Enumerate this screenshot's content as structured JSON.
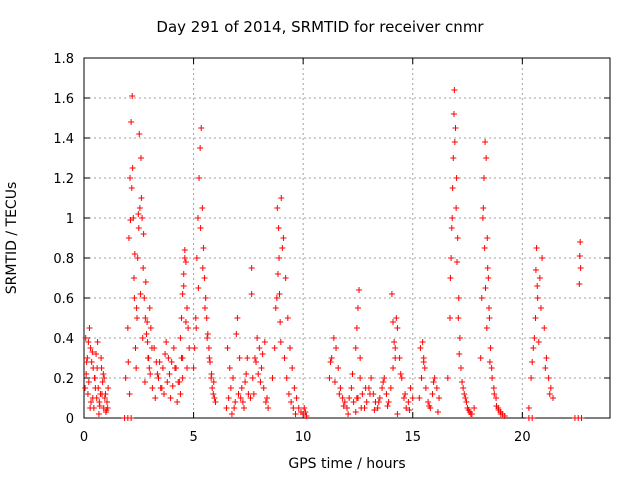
{
  "chart_data": {
    "type": "scatter",
    "title": "Day 291 of 2014, SRMTID for receiver cnmr",
    "xlabel": "GPS time / hours",
    "ylabel": "SRMTID / TECUs",
    "xlim": [
      0,
      24
    ],
    "ylim": [
      0,
      1.8
    ],
    "xticks": [
      0,
      5,
      10,
      15,
      20
    ],
    "xtick_labels": [
      "0",
      "5",
      "10",
      "15",
      "20"
    ],
    "yticks": [
      0,
      0.2,
      0.4,
      0.6,
      0.8,
      1,
      1.2,
      1.4,
      1.6,
      1.8
    ],
    "ytick_labels": [
      "0",
      "0.2",
      "0.4",
      "0.6",
      "0.8",
      "1",
      "1.2",
      "1.4",
      "1.6",
      "1.8"
    ],
    "grid": true,
    "marker": "+",
    "color": "#ff0000",
    "series": [
      {
        "name": "SRMTID",
        "x": [
          0.05,
          0.1,
          0.15,
          0.2,
          0.25,
          0.3,
          0.35,
          0.4,
          0.45,
          0.5,
          0.55,
          0.6,
          0.65,
          0.7,
          0.75,
          0.8,
          0.85,
          0.9,
          0.95,
          1.0,
          1.05,
          1.1,
          0.08,
          0.18,
          0.28,
          0.38,
          0.48,
          0.58,
          0.68,
          0.78,
          0.88,
          0.98,
          1.08,
          0.12,
          0.22,
          0.32,
          0.42,
          0.52,
          0.62,
          0.72,
          0.82,
          0.92,
          1.02,
          1.9,
          2.0,
          2.05,
          2.1,
          2.15,
          2.2,
          2.25,
          2.3,
          2.35,
          2.4,
          2.45,
          2.5,
          2.55,
          2.6,
          2.65,
          2.7,
          2.75,
          2.8,
          2.85,
          2.9,
          2.95,
          3.0,
          3.05,
          3.1,
          2.02,
          2.12,
          2.22,
          2.32,
          2.42,
          2.52,
          2.62,
          2.72,
          2.82,
          2.92,
          3.02,
          3.12,
          2.08,
          2.18,
          2.28,
          2.38,
          2.48,
          2.58,
          2.68,
          2.78,
          2.88,
          2.98,
          3.2,
          3.3,
          3.4,
          3.5,
          3.6,
          3.7,
          3.8,
          3.9,
          4.0,
          4.1,
          4.2,
          4.3,
          4.4,
          4.5,
          3.25,
          3.45,
          3.65,
          3.85,
          4.05,
          4.25,
          4.45,
          3.35,
          3.55,
          3.75,
          3.95,
          4.15,
          4.35,
          4.4,
          4.45,
          4.5,
          4.55,
          4.6,
          4.65,
          4.7,
          4.75,
          4.8,
          4.5,
          4.55,
          4.6,
          4.65,
          4.7,
          5.0,
          5.05,
          5.1,
          5.15,
          5.2,
          5.25,
          5.3,
          5.35,
          5.4,
          5.45,
          5.5,
          5.55,
          5.6,
          5.65,
          5.7,
          5.75,
          5.8,
          5.85,
          5.9,
          5.95,
          6.0,
          5.12,
          5.22,
          5.32,
          5.42,
          5.52,
          5.62,
          5.72,
          5.82,
          5.92,
          6.5,
          6.6,
          6.7,
          6.8,
          6.9,
          7.0,
          7.1,
          7.2,
          7.3,
          7.4,
          7.5,
          6.55,
          6.75,
          6.95,
          7.15,
          7.35,
          6.65,
          6.85,
          7.05,
          7.25,
          7.45,
          7.6,
          7.7,
          7.8,
          7.9,
          8.0,
          8.1,
          8.2,
          8.3,
          8.4,
          7.65,
          7.85,
          8.05,
          8.25,
          7.75,
          7.95,
          8.15,
          8.35,
          7.65,
          8.6,
          8.7,
          8.8,
          8.9,
          9.0,
          9.1,
          9.2,
          9.3,
          9.4,
          9.5,
          9.6,
          9.7,
          9.8,
          9.9,
          8.75,
          8.82,
          8.85,
          8.88,
          8.92,
          8.95,
          8.98,
          9.05,
          9.15,
          9.25,
          9.35,
          9.45,
          9.55,
          9.65,
          10.0,
          10.05,
          10.1,
          10.15,
          11.2,
          11.3,
          11.4,
          11.5,
          11.6,
          11.7,
          11.8,
          11.9,
          12.0,
          12.1,
          12.2,
          12.3,
          12.4,
          12.5,
          12.6,
          12.7,
          12.8,
          12.9,
          13.0,
          13.1,
          13.2,
          13.3,
          13.4,
          13.5,
          13.6,
          13.7,
          13.8,
          13.9,
          11.25,
          11.45,
          11.65,
          11.85,
          12.05,
          12.25,
          12.45,
          12.65,
          12.85,
          13.05,
          13.25,
          13.45,
          13.65,
          13.85,
          12.4,
          12.45,
          12.5,
          12.55,
          12.6,
          14.0,
          14.1,
          14.2,
          14.3,
          14.4,
          14.5,
          14.6,
          14.7,
          14.8,
          14.9,
          15.0,
          14.05,
          14.25,
          14.45,
          14.65,
          14.85,
          14.1,
          14.15,
          14.2,
          14.3,
          15.3,
          15.4,
          15.5,
          15.6,
          15.7,
          15.8,
          15.9,
          16.0,
          16.1,
          16.2,
          15.35,
          15.55,
          15.75,
          15.95,
          16.15,
          15.45,
          15.5,
          16.6,
          16.7,
          16.75,
          16.8,
          16.85,
          16.9,
          16.95,
          17.0,
          17.05,
          17.1,
          17.15,
          17.2,
          17.3,
          17.4,
          17.5,
          17.6,
          17.7,
          17.8,
          16.72,
          16.78,
          16.82,
          16.88,
          16.92,
          16.98,
          17.02,
          17.08,
          17.12,
          17.25,
          17.35,
          17.45,
          17.55,
          17.65,
          18.1,
          18.15,
          18.2,
          18.25,
          18.3,
          18.35,
          18.4,
          18.45,
          18.5,
          18.55,
          18.6,
          18.7,
          18.8,
          18.9,
          19.0,
          19.1,
          19.2,
          18.22,
          18.28,
          18.32,
          18.38,
          18.42,
          18.48,
          18.52,
          18.62,
          18.72,
          18.82,
          18.92,
          19.02,
          20.3,
          20.4,
          20.5,
          20.6,
          20.7,
          20.8,
          20.9,
          21.0,
          21.1,
          21.2,
          21.3,
          21.4,
          20.45,
          20.65,
          20.85,
          21.05,
          21.25,
          20.55,
          20.62,
          20.68,
          20.75,
          22.6,
          22.62,
          22.64,
          22.66,
          1.85,
          2.0,
          2.15,
          20.3,
          20.45,
          22.4,
          22.55,
          22.7
        ],
        "y": [
          0.15,
          0.22,
          0.3,
          0.38,
          0.45,
          0.35,
          0.28,
          0.1,
          0.05,
          0.2,
          0.32,
          0.25,
          0.15,
          0.08,
          0.12,
          0.25,
          0.18,
          0.05,
          0.1,
          0.03,
          0.08,
          0.15,
          0.4,
          0.12,
          0.05,
          0.33,
          0.2,
          0.1,
          0.02,
          0.3,
          0.22,
          0.12,
          0.05,
          0.28,
          0.18,
          0.08,
          0.25,
          0.15,
          0.38,
          0.06,
          0.12,
          0.2,
          0.04,
          0.2,
          0.45,
          0.9,
          1.2,
          1.48,
          1.61,
          1.0,
          0.6,
          0.35,
          0.55,
          0.8,
          0.95,
          1.05,
          1.3,
          1.0,
          0.75,
          0.6,
          0.5,
          0.42,
          0.38,
          0.3,
          0.55,
          0.45,
          0.35,
          0.28,
          0.99,
          1.25,
          0.82,
          0.5,
          1.42,
          1.1,
          0.92,
          0.68,
          0.3,
          0.22,
          0.15,
          0.12,
          1.15,
          0.7,
          0.25,
          1.02,
          0.62,
          0.4,
          0.18,
          0.48,
          0.25,
          0.35,
          0.28,
          0.2,
          0.15,
          0.25,
          0.32,
          0.18,
          0.22,
          0.28,
          0.35,
          0.25,
          0.18,
          0.12,
          0.2,
          0.1,
          0.28,
          0.12,
          0.3,
          0.16,
          0.08,
          0.3,
          0.22,
          0.15,
          0.38,
          0.1,
          0.25,
          0.18,
          0.4,
          0.5,
          0.62,
          0.72,
          0.84,
          0.78,
          0.55,
          0.45,
          0.35,
          0.3,
          0.66,
          0.8,
          0.48,
          0.25,
          0.25,
          0.35,
          0.5,
          0.8,
          1.0,
          1.2,
          1.35,
          1.45,
          1.05,
          0.85,
          0.7,
          0.6,
          0.5,
          0.42,
          0.35,
          0.28,
          0.2,
          0.15,
          0.12,
          0.1,
          0.08,
          0.45,
          0.65,
          0.95,
          0.75,
          0.55,
          0.4,
          0.3,
          0.22,
          0.18,
          0.05,
          0.1,
          0.15,
          0.2,
          0.08,
          0.5,
          0.3,
          0.15,
          0.05,
          0.22,
          0.12,
          0.35,
          0.02,
          0.42,
          0.1,
          0.18,
          0.25,
          0.05,
          0.12,
          0.08,
          0.3,
          0.1,
          0.2,
          0.3,
          0.4,
          0.35,
          0.25,
          0.15,
          0.08,
          0.05,
          0.75,
          0.28,
          0.18,
          0.38,
          0.12,
          0.22,
          0.32,
          0.1,
          0.62,
          0.2,
          0.35,
          0.6,
          0.8,
          1.1,
          0.9,
          0.7,
          0.5,
          0.35,
          0.25,
          0.15,
          0.1,
          0.05,
          0.03,
          0.55,
          1.05,
          0.72,
          0.95,
          0.62,
          0.48,
          0.38,
          0.85,
          0.3,
          0.2,
          0.12,
          0.08,
          0.05,
          0.02,
          0.02,
          0.05,
          0.03,
          0.01,
          0.2,
          0.3,
          0.4,
          0.35,
          0.25,
          0.15,
          0.1,
          0.08,
          0.05,
          0.1,
          0.15,
          0.08,
          0.03,
          0.1,
          0.2,
          0.12,
          0.05,
          0.08,
          0.15,
          0.2,
          0.12,
          0.08,
          0.05,
          0.1,
          0.15,
          0.2,
          0.12,
          0.08,
          0.28,
          0.18,
          0.12,
          0.06,
          0.02,
          0.22,
          0.1,
          0.05,
          0.15,
          0.12,
          0.04,
          0.08,
          0.18,
          0.06,
          0.35,
          0.45,
          0.55,
          0.64,
          0.3,
          0.15,
          0.25,
          0.35,
          0.45,
          0.3,
          0.2,
          0.1,
          0.05,
          0.08,
          0.15,
          0.1,
          0.62,
          0.5,
          0.22,
          0.12,
          0.04,
          0.48,
          0.38,
          0.3,
          0.02,
          0.1,
          0.2,
          0.3,
          0.15,
          0.08,
          0.05,
          0.12,
          0.2,
          0.15,
          0.1,
          0.35,
          0.25,
          0.06,
          0.18,
          0.03,
          0.38,
          0.28,
          0.2,
          0.5,
          0.8,
          1.0,
          1.3,
          1.64,
          1.45,
          1.2,
          0.9,
          0.6,
          0.4,
          0.25,
          0.15,
          0.1,
          0.05,
          0.03,
          0.02,
          0.05,
          0.7,
          0.95,
          1.15,
          1.52,
          1.38,
          1.05,
          0.78,
          0.5,
          0.32,
          0.18,
          0.12,
          0.08,
          0.04,
          0.02,
          0.3,
          0.6,
          1.0,
          1.2,
          1.38,
          1.3,
          0.9,
          0.7,
          0.5,
          0.35,
          0.25,
          0.15,
          0.1,
          0.05,
          0.03,
          0.02,
          0.01,
          1.05,
          0.85,
          0.65,
          0.45,
          0.75,
          0.55,
          0.28,
          0.2,
          0.12,
          0.06,
          0.04,
          0.02,
          0.05,
          0.2,
          0.35,
          0.5,
          0.6,
          0.7,
          0.8,
          0.45,
          0.3,
          0.2,
          0.15,
          0.1,
          0.28,
          0.85,
          0.55,
          0.25,
          0.12,
          0.4,
          0.74,
          0.66,
          0.38,
          0.67,
          0.81,
          0.88,
          0.75,
          0.0,
          0.0,
          0.0,
          0.0,
          0.0,
          0.0,
          0.0,
          0.0
        ]
      }
    ]
  }
}
